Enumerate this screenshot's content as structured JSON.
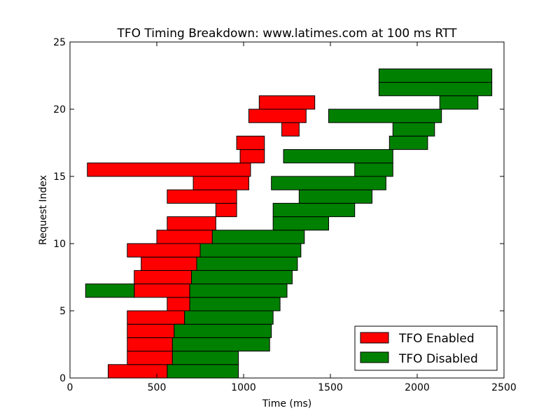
{
  "chart_data": {
    "type": "bar",
    "orientation": "horizontal",
    "title": "TFO Timing Breakdown: www.latimes.com at 100 ms RTT",
    "xlabel": "Time (ms)",
    "ylabel": "Request Index",
    "xlim": [
      0,
      2500
    ],
    "ylim": [
      0,
      25
    ],
    "xticks": [
      "0",
      "500",
      "1000",
      "1500",
      "2000",
      "2500"
    ],
    "yticks": [
      "0",
      "5",
      "10",
      "15",
      "20",
      "25"
    ],
    "grid": false,
    "legend": {
      "position": "bottom-right",
      "entries": [
        {
          "name": "TFO Enabled",
          "color": "#ff0000"
        },
        {
          "name": "TFO Disabled",
          "color": "#008000"
        }
      ]
    },
    "series": [
      {
        "name": "TFO Enabled",
        "color": "#ff0000",
        "intervals": [
          {
            "index": 0,
            "start": 220,
            "end": 560
          },
          {
            "index": 1,
            "start": 330,
            "end": 590
          },
          {
            "index": 2,
            "start": 330,
            "end": 590
          },
          {
            "index": 3,
            "start": 330,
            "end": 600
          },
          {
            "index": 4,
            "start": 330,
            "end": 660
          },
          {
            "index": 5,
            "start": 560,
            "end": 690
          },
          {
            "index": 6,
            "start": 370,
            "end": 690
          },
          {
            "index": 7,
            "start": 370,
            "end": 700
          },
          {
            "index": 8,
            "start": 410,
            "end": 730
          },
          {
            "index": 9,
            "start": 330,
            "end": 750
          },
          {
            "index": 10,
            "start": 500,
            "end": 820
          },
          {
            "index": 11,
            "start": 560,
            "end": 840
          },
          {
            "index": 12,
            "start": 840,
            "end": 960
          },
          {
            "index": 13,
            "start": 560,
            "end": 960
          },
          {
            "index": 14,
            "start": 710,
            "end": 1030
          },
          {
            "index": 15,
            "start": 100,
            "end": 1040
          },
          {
            "index": 16,
            "start": 980,
            "end": 1120
          },
          {
            "index": 17,
            "start": 960,
            "end": 1120
          },
          {
            "index": 18,
            "start": 1220,
            "end": 1320
          },
          {
            "index": 19,
            "start": 1030,
            "end": 1360
          },
          {
            "index": 20,
            "start": 1090,
            "end": 1410
          }
        ]
      },
      {
        "name": "TFO Disabled",
        "color": "#008000",
        "intervals": [
          {
            "index": 0,
            "start": 560,
            "end": 970
          },
          {
            "index": 1,
            "start": 590,
            "end": 970
          },
          {
            "index": 2,
            "start": 590,
            "end": 1150
          },
          {
            "index": 3,
            "start": 600,
            "end": 1160
          },
          {
            "index": 4,
            "start": 660,
            "end": 1170
          },
          {
            "index": 5,
            "start": 690,
            "end": 1210
          },
          {
            "index": 6,
            "start": 90,
            "end": 370
          },
          {
            "index": 6,
            "start": 690,
            "end": 1250
          },
          {
            "index": 7,
            "start": 700,
            "end": 1280
          },
          {
            "index": 8,
            "start": 730,
            "end": 1310
          },
          {
            "index": 9,
            "start": 750,
            "end": 1330
          },
          {
            "index": 10,
            "start": 820,
            "end": 1350
          },
          {
            "index": 11,
            "start": 1170,
            "end": 1490
          },
          {
            "index": 12,
            "start": 1170,
            "end": 1640
          },
          {
            "index": 13,
            "start": 1320,
            "end": 1740
          },
          {
            "index": 14,
            "start": 1160,
            "end": 1820
          },
          {
            "index": 15,
            "start": 1640,
            "end": 1860
          },
          {
            "index": 16,
            "start": 1230,
            "end": 1860
          },
          {
            "index": 17,
            "start": 1840,
            "end": 2060
          },
          {
            "index": 18,
            "start": 1860,
            "end": 2100
          },
          {
            "index": 19,
            "start": 1490,
            "end": 2140
          },
          {
            "index": 20,
            "start": 2130,
            "end": 2350
          },
          {
            "index": 21,
            "start": 1780,
            "end": 2430
          },
          {
            "index": 22,
            "start": 1780,
            "end": 2430
          }
        ]
      }
    ]
  }
}
